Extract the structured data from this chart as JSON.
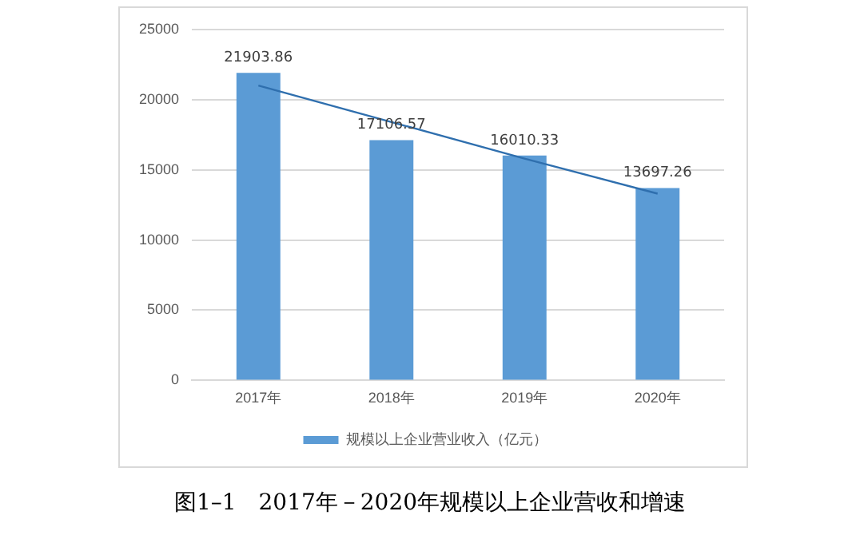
{
  "chart_data": {
    "type": "bar",
    "categories": [
      "2017年",
      "2018年",
      "2019年",
      "2020年"
    ],
    "series": [
      {
        "name": "规模以上企业营业收入（亿元）",
        "color": "#5b9bd5",
        "values": [
          21903.86,
          17106.57,
          16010.33,
          13697.26
        ],
        "value_labels": [
          "21903.86",
          "17106.57",
          "16010.33",
          "13697.26"
        ]
      },
      {
        "type": "line",
        "color": "#2f6fae",
        "values": [
          21000,
          18400,
          15800,
          13300
        ]
      }
    ],
    "ylim": [
      0,
      25000
    ],
    "yticks": [
      0,
      5000,
      10000,
      15000,
      20000,
      25000
    ],
    "grid": "y",
    "legend": "bottom",
    "marker": "none",
    "annotations": [
      "图1–1　2017年－2020年规模以上企业营收和增速"
    ]
  }
}
